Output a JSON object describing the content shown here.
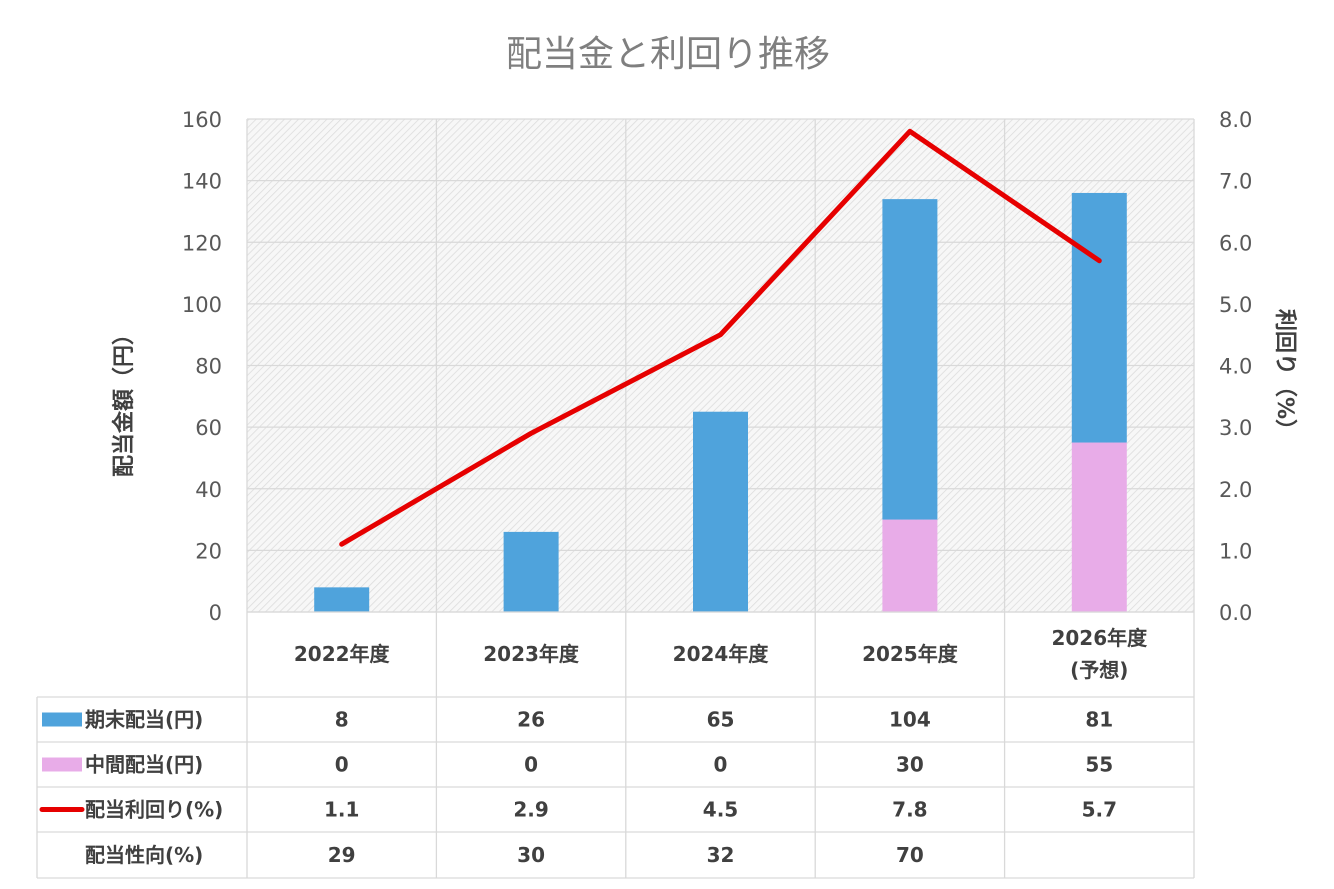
{
  "chart_data": {
    "type": "bar",
    "title": "配当金と利回り推移",
    "categories": [
      [
        "2022年度"
      ],
      [
        "2023年度"
      ],
      [
        "2024年度"
      ],
      [
        "2025年度"
      ],
      [
        "2026年度",
        "(予想)"
      ]
    ],
    "ylabel": "配当金額（円）",
    "y2label": "利回り（%）",
    "ylim": [
      0,
      160
    ],
    "y2lim": [
      0,
      8
    ],
    "yticks": [
      "0",
      "20",
      "40",
      "60",
      "80",
      "100",
      "120",
      "140",
      "160"
    ],
    "y2ticks": [
      "0.0",
      "1.0",
      "2.0",
      "3.0",
      "4.0",
      "5.0",
      "6.0",
      "7.0",
      "8.0"
    ],
    "stacked": true,
    "grid": true,
    "series": [
      {
        "name": "中間配当(円)",
        "type": "bar",
        "color": "#e8ace8",
        "values": [
          0,
          0,
          0,
          30,
          55
        ],
        "labels": [
          "0",
          "0",
          "0",
          "30",
          "55"
        ]
      },
      {
        "name": "期末配当(円)",
        "type": "bar",
        "color": "#4fa3dc",
        "values": [
          8,
          26,
          65,
          104,
          81
        ],
        "labels": [
          "8",
          "26",
          "65",
          "104",
          "81"
        ]
      },
      {
        "name": "配当利回り(%)",
        "type": "line",
        "axis": "right",
        "color": "#e60000",
        "values": [
          1.1,
          2.9,
          4.5,
          7.8,
          5.7
        ],
        "labels": [
          "1.1",
          "2.9",
          "4.5",
          "7.8",
          "5.7"
        ]
      }
    ],
    "data_table": {
      "rows": [
        {
          "label": "期末配当(円)",
          "legend": "bar",
          "color": "#4fa3dc",
          "cells": [
            "8",
            "26",
            "65",
            "104",
            "81"
          ]
        },
        {
          "label": "中間配当(円)",
          "legend": "bar",
          "color": "#e8ace8",
          "cells": [
            "0",
            "0",
            "0",
            "30",
            "55"
          ]
        },
        {
          "label": "配当利回り(%)",
          "legend": "line",
          "color": "#e60000",
          "cells": [
            "1.1",
            "2.9",
            "4.5",
            "7.8",
            "5.7"
          ]
        },
        {
          "label": "配当性向(%)",
          "legend": "none",
          "color": "",
          "cells": [
            "29",
            "30",
            "32",
            "70",
            ""
          ]
        }
      ]
    }
  }
}
